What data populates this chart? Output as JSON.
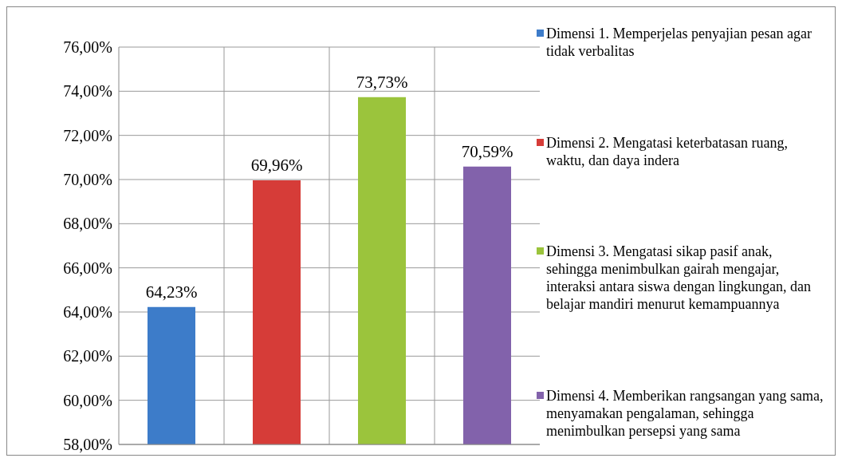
{
  "chart_data": {
    "type": "bar",
    "categories": [
      null,
      null,
      null,
      null
    ],
    "series": [
      {
        "name": "Dimensi 1. Memperjelas penyajian pesan agar tidak verbalitas",
        "color": "#3d7cc9",
        "values": [
          64.23,
          null,
          null,
          null
        ],
        "value_labels": [
          "64,23%",
          null,
          null,
          null
        ]
      },
      {
        "name": "Dimensi 2. Mengatasi keterbatasan ruang, waktu, dan daya indera",
        "color": "#d63c38",
        "values": [
          null,
          69.96,
          null,
          null
        ],
        "value_labels": [
          null,
          "69,96%",
          null,
          null
        ]
      },
      {
        "name": "Dimensi 3. Mengatasi sikap pasif anak, sehingga menimbulkan gairah mengajar, interaksi antara siswa dengan lingkungan, dan belajar mandiri menurut kemampuannya",
        "color": "#9bc43c",
        "values": [
          null,
          null,
          73.73,
          null
        ],
        "value_labels": [
          null,
          null,
          "73,73%",
          null
        ]
      },
      {
        "name": "Dimensi 4. Memberikan rangsangan yang sama, menyamakan pengalaman, sehingga menimbulkan persepsi yang sama",
        "color": "#8262ab",
        "values": [
          null,
          null,
          null,
          70.59
        ],
        "value_labels": [
          null,
          null,
          null,
          "70,59%"
        ]
      }
    ],
    "ylim": [
      58,
      76
    ],
    "yticks": [
      {
        "value": 58,
        "label": "58,00%"
      },
      {
        "value": 60,
        "label": "60,00%"
      },
      {
        "value": 62,
        "label": "62,00%"
      },
      {
        "value": 64,
        "label": "64,00%"
      },
      {
        "value": 66,
        "label": "66,00%"
      },
      {
        "value": 68,
        "label": "68,00%"
      },
      {
        "value": 70,
        "label": "70,00%"
      },
      {
        "value": 72,
        "label": "72,00%"
      },
      {
        "value": 74,
        "label": "74,00%"
      },
      {
        "value": 76,
        "label": "76,00%"
      }
    ],
    "grid": true,
    "legend": "right"
  }
}
